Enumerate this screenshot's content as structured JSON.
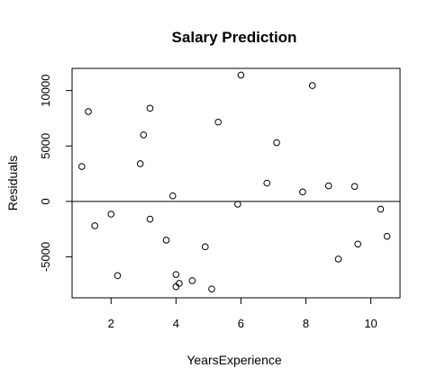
{
  "chart_data": {
    "type": "scatter",
    "title": "Salary Prediction",
    "xlabel": "YearsExperience",
    "ylabel": "Residuals",
    "xlim": [
      0.8,
      10.9
    ],
    "ylim": [
      -8700,
      12000
    ],
    "xticks": [
      2,
      4,
      6,
      8,
      10
    ],
    "yticks": [
      -5000,
      0,
      5000,
      10000
    ],
    "xtick_labels": [
      "2",
      "4",
      "6",
      "8",
      "10"
    ],
    "ytick_labels": [
      "-5000",
      "0",
      "5000",
      "10000"
    ],
    "reference_line_y": 0,
    "grid": false,
    "legend": "none",
    "points": [
      {
        "x": 1.1,
        "y": 3150
      },
      {
        "x": 1.3,
        "y": 8100
      },
      {
        "x": 1.5,
        "y": -2200
      },
      {
        "x": 2.0,
        "y": -1150
      },
      {
        "x": 2.2,
        "y": -6700
      },
      {
        "x": 2.9,
        "y": 3400
      },
      {
        "x": 3.0,
        "y": 6000
      },
      {
        "x": 3.2,
        "y": 8400
      },
      {
        "x": 3.2,
        "y": -1600
      },
      {
        "x": 3.7,
        "y": -3500
      },
      {
        "x": 3.9,
        "y": 500
      },
      {
        "x": 4.0,
        "y": -6600
      },
      {
        "x": 4.0,
        "y": -7700
      },
      {
        "x": 4.1,
        "y": -7400
      },
      {
        "x": 4.5,
        "y": -7150
      },
      {
        "x": 4.9,
        "y": -4100
      },
      {
        "x": 5.1,
        "y": -7900
      },
      {
        "x": 5.3,
        "y": 7150
      },
      {
        "x": 5.9,
        "y": -250
      },
      {
        "x": 6.0,
        "y": 11400
      },
      {
        "x": 6.8,
        "y": 1650
      },
      {
        "x": 7.1,
        "y": 5300
      },
      {
        "x": 7.9,
        "y": 850
      },
      {
        "x": 8.2,
        "y": 10450
      },
      {
        "x": 8.7,
        "y": 1400
      },
      {
        "x": 9.0,
        "y": -5200
      },
      {
        "x": 9.5,
        "y": 1350
      },
      {
        "x": 9.6,
        "y": -3850
      },
      {
        "x": 10.3,
        "y": -700
      },
      {
        "x": 10.5,
        "y": -3150
      }
    ]
  }
}
